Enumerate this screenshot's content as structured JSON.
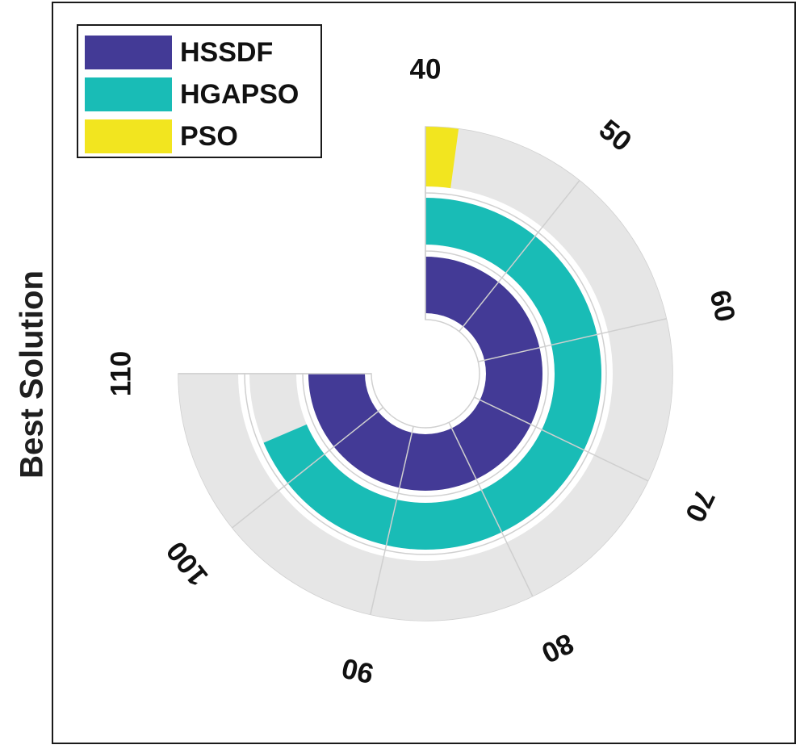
{
  "chart_data": {
    "type": "radial-bar",
    "ylabel": "Best Solution",
    "legend_position": "top-left",
    "theta_ticks": [
      40,
      50,
      60,
      70,
      80,
      90,
      100,
      110
    ],
    "theta_range": [
      40,
      110
    ],
    "series": [
      {
        "name": "HSSDF",
        "color": "#433a96",
        "value": 110,
        "ring": "inner"
      },
      {
        "name": "HGAPSO",
        "color": "#19bcb6",
        "value": 104,
        "ring": "middle"
      },
      {
        "name": "PSO",
        "color": "#f2e51f",
        "value": 42,
        "ring": "outer"
      }
    ],
    "background_track_color": "#e6e6e6",
    "grid": true
  },
  "legend": {
    "items": [
      {
        "label": "HSSDF",
        "color": "#433a96"
      },
      {
        "label": "HGAPSO",
        "color": "#19bcb6"
      },
      {
        "label": "PSO",
        "color": "#f2e51f"
      }
    ]
  }
}
